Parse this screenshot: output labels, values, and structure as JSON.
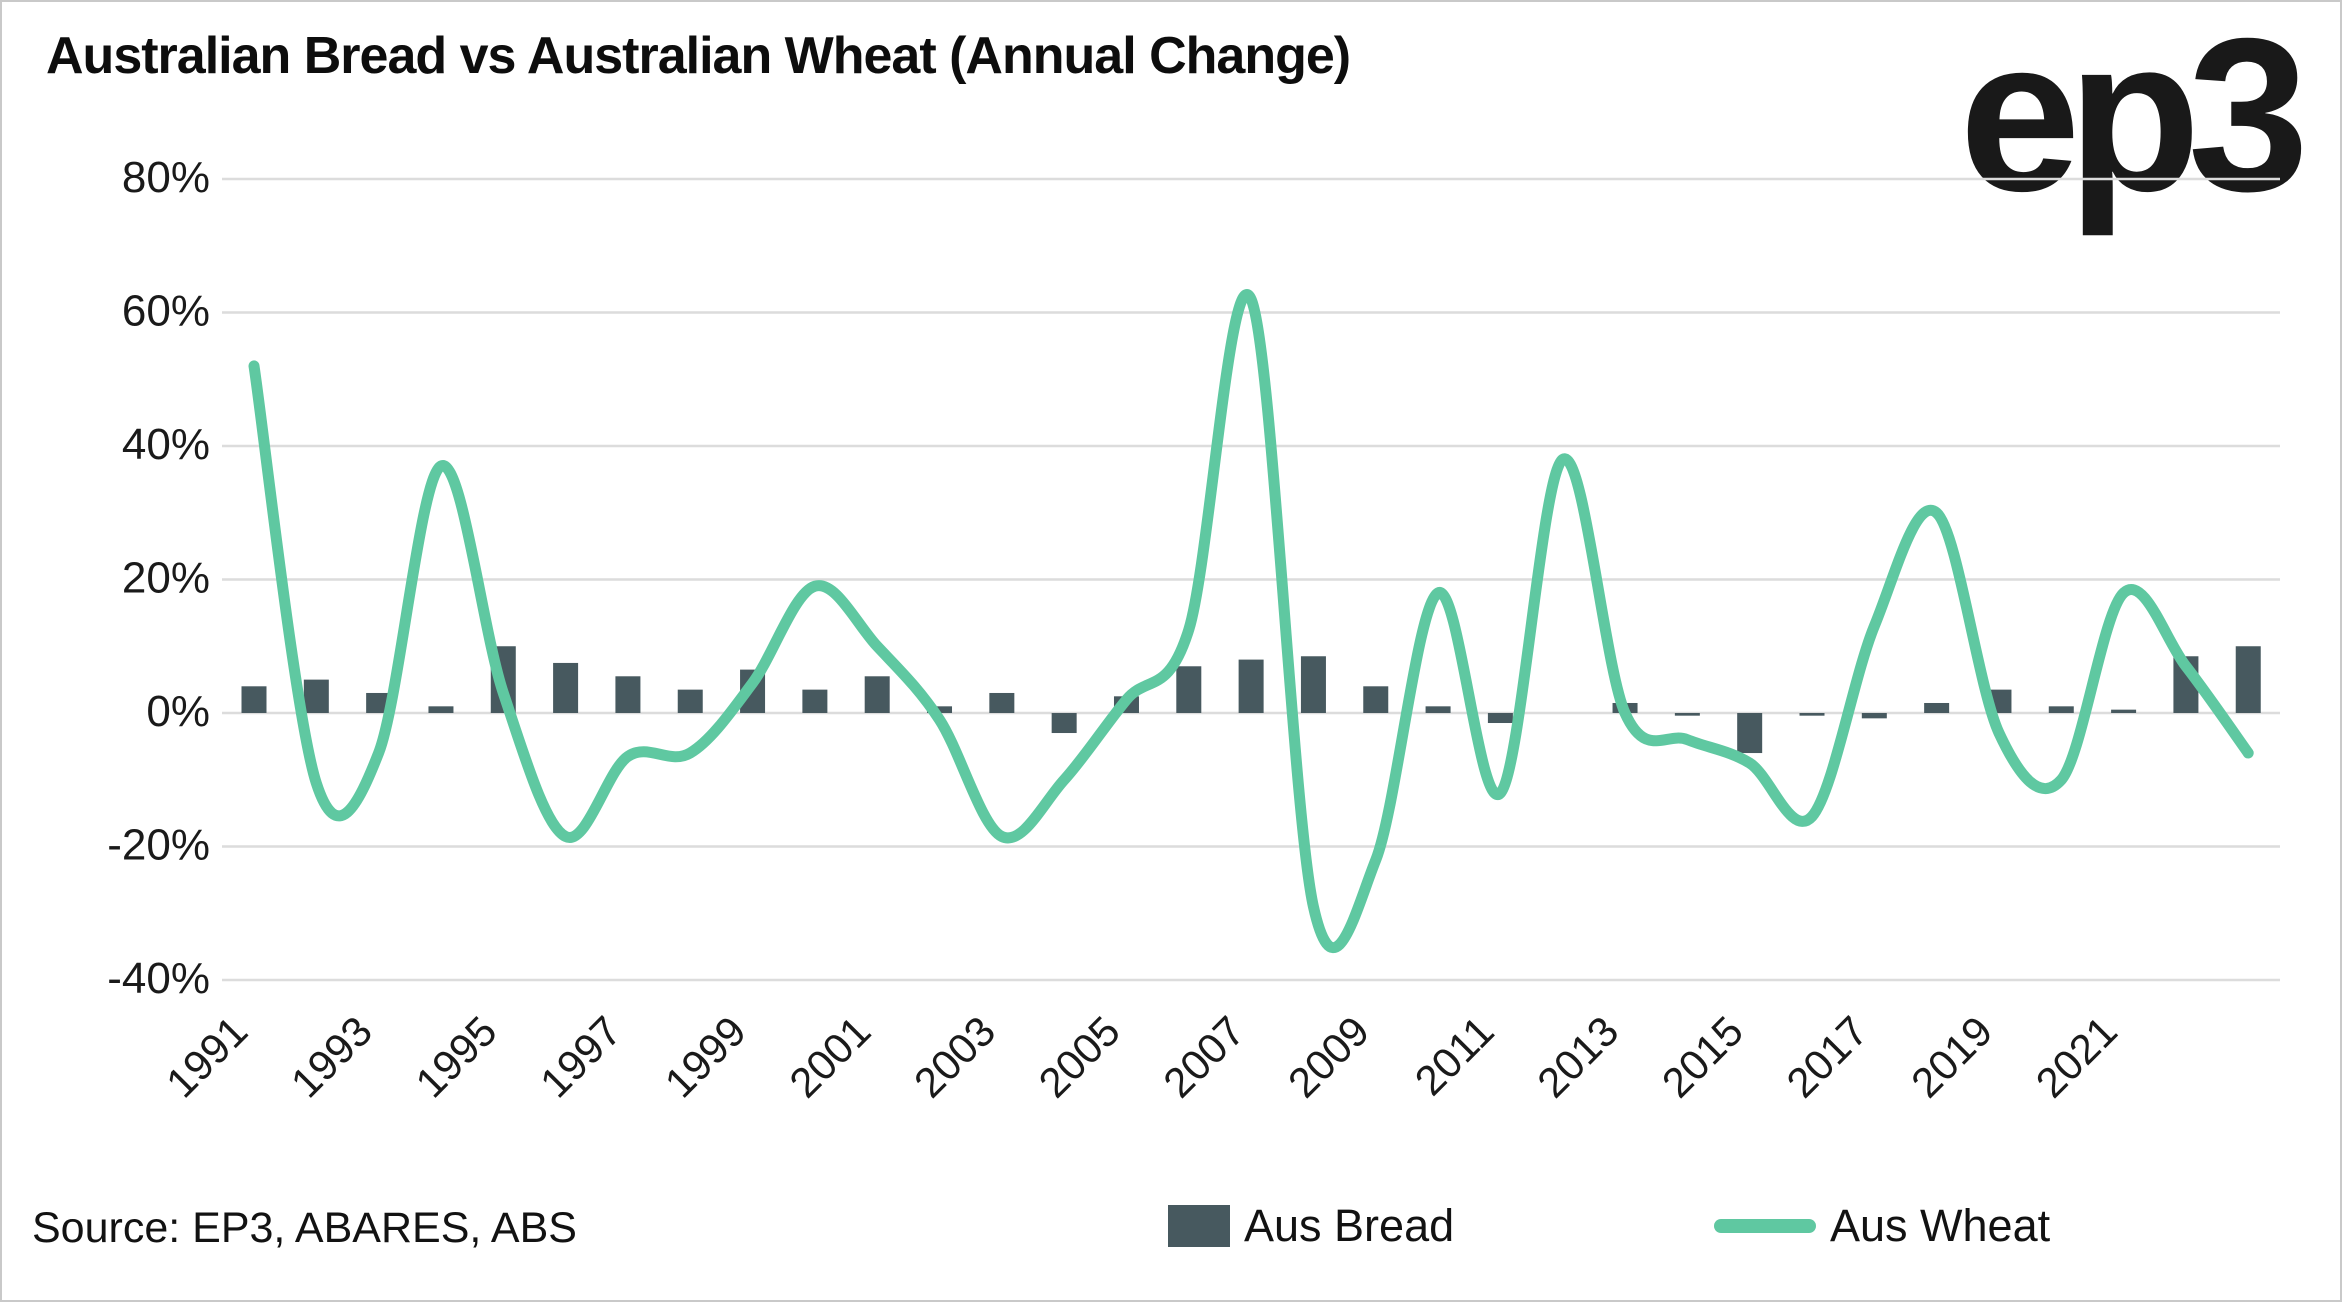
{
  "frame": {
    "background": "#ffffff",
    "border_color": "#c9c9c9"
  },
  "header": {
    "title": "Australian Bread vs Australian Wheat (Annual Change)",
    "logo_text": "ep3"
  },
  "footer": {
    "source": "Source: EP3, ABARES, ABS"
  },
  "legend": [
    {
      "label": "Aus Bread",
      "swatch": "bar-swatch"
    },
    {
      "label": "Aus Wheat",
      "swatch": "line-swatch"
    }
  ],
  "colors": {
    "bread": "#47595f",
    "wheat": "#5fc8a1",
    "gridline": "#dcdcdc",
    "text": "#1a1a1a",
    "title": "#0d0d0d"
  },
  "chart_data": {
    "type": "bar+line",
    "title": "Australian Bread vs Australian Wheat (Annual Change)",
    "xlabel": "",
    "ylabel": "",
    "categories": [
      1991,
      1992,
      1993,
      1994,
      1995,
      1996,
      1997,
      1998,
      1999,
      2000,
      2001,
      2002,
      2003,
      2004,
      2005,
      2006,
      2007,
      2008,
      2009,
      2010,
      2011,
      2012,
      2013,
      2014,
      2015,
      2016,
      2017,
      2018,
      2019,
      2020,
      2021,
      2022,
      2023
    ],
    "series": [
      {
        "name": "Aus Bread",
        "type": "bar",
        "unit": "%",
        "values": [
          4,
          5,
          3,
          1,
          10,
          7.5,
          5.5,
          3.5,
          6.5,
          3.5,
          5.5,
          1,
          3,
          -3,
          2.5,
          7,
          8,
          8.5,
          4,
          1,
          -1.5,
          0,
          1.5,
          -0.4,
          -6,
          -0.4,
          -0.8,
          1.5,
          3.5,
          1,
          0.5,
          8.5,
          10
        ]
      },
      {
        "name": "Aus Wheat",
        "type": "line",
        "smooth": true,
        "unit": "%",
        "values": [
          52,
          -10.5,
          -6,
          37,
          3,
          -18.5,
          -6.5,
          -6,
          4.5,
          19,
          10,
          -1,
          -18.5,
          -10,
          2,
          12.5,
          62,
          -29,
          -22,
          18,
          -12,
          38,
          0,
          -4,
          -7.5,
          -15.5,
          13,
          30,
          -3,
          -10,
          18,
          7,
          -6
        ]
      }
    ],
    "y_ticks": [
      80,
      60,
      40,
      20,
      0,
      -20,
      -40
    ],
    "y_tick_suffix": "%",
    "x_tick_years": [
      1991,
      1993,
      1995,
      1997,
      1999,
      2001,
      2003,
      2005,
      2007,
      2009,
      2011,
      2013,
      2015,
      2017,
      2019,
      2021
    ],
    "ylim": [
      -46,
      86
    ],
    "grid": "horizontal",
    "legend_position": "bottom"
  }
}
